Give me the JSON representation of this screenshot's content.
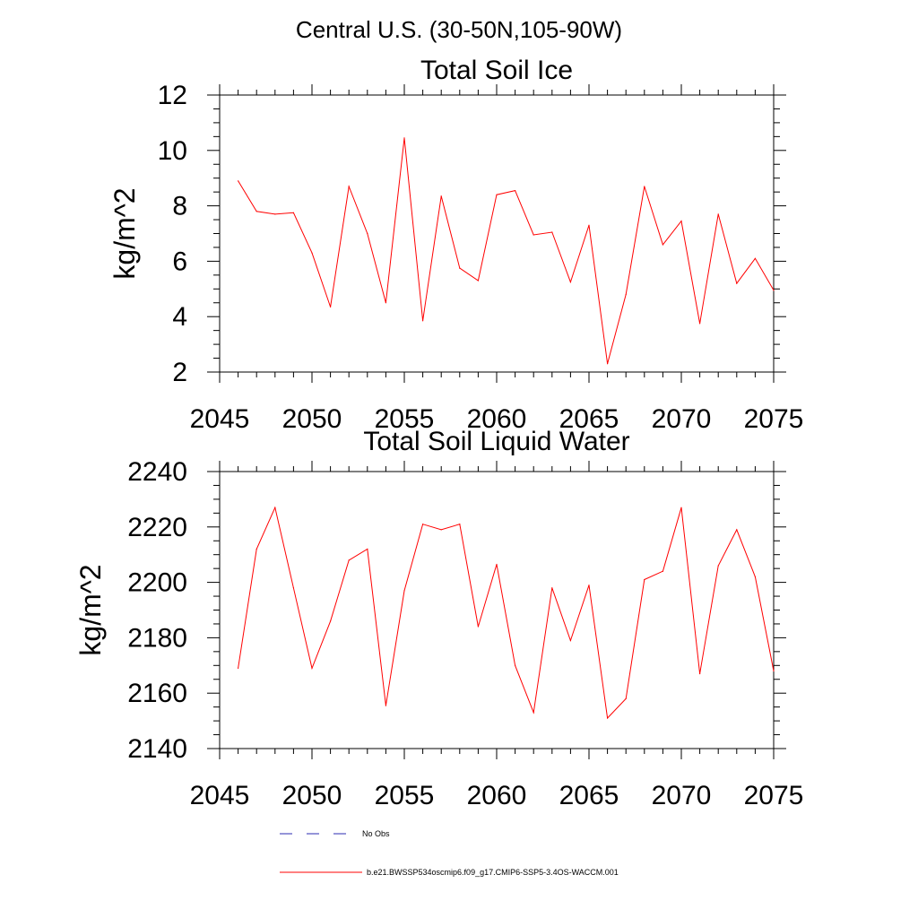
{
  "figure": {
    "super_title": "Central U.S. (30-50N,105-90W)",
    "colors": {
      "series": "#ff0000",
      "obs": "#2b2bb0",
      "axes": "#000000",
      "background": "#ffffff"
    }
  },
  "chart_data": [
    {
      "type": "line",
      "title": "Total Soil Ice",
      "xlabel": "",
      "ylabel": "kg/m^2",
      "xlim": [
        2045,
        2075
      ],
      "ylim": [
        2,
        12
      ],
      "x_ticks": [
        2045,
        2050,
        2055,
        2060,
        2065,
        2070,
        2075
      ],
      "y_ticks": [
        2,
        4,
        6,
        8,
        10,
        12
      ],
      "grid": false,
      "series": [
        {
          "name": "b.e21.BWSSP534oscmip6.f09_g17.CMIP6-SSP5-3.4OS-WACCM.001",
          "x": [
            2046,
            2047,
            2048,
            2049,
            2050,
            2051,
            2052,
            2053,
            2054,
            2055,
            2056,
            2057,
            2058,
            2059,
            2060,
            2061,
            2062,
            2063,
            2064,
            2065,
            2066,
            2067,
            2068,
            2069,
            2070,
            2071,
            2072,
            2073,
            2074,
            2075
          ],
          "values": [
            8.9,
            7.8,
            7.7,
            7.75,
            6.3,
            4.35,
            8.7,
            7.0,
            4.5,
            10.45,
            3.85,
            8.35,
            5.75,
            5.3,
            8.4,
            8.55,
            6.95,
            7.05,
            5.25,
            7.3,
            2.3,
            4.8,
            8.7,
            6.6,
            7.45,
            3.75,
            7.7,
            5.2,
            6.1,
            4.95
          ]
        }
      ]
    },
    {
      "type": "line",
      "title": "Total Soil Liquid Water",
      "xlabel": "",
      "ylabel": "kg/m^2",
      "xlim": [
        2045,
        2075
      ],
      "ylim": [
        2140,
        2240
      ],
      "x_ticks": [
        2045,
        2050,
        2055,
        2060,
        2065,
        2070,
        2075
      ],
      "y_ticks": [
        2140,
        2160,
        2180,
        2200,
        2220,
        2240
      ],
      "grid": false,
      "series": [
        {
          "name": "b.e21.BWSSP534oscmip6.f09_g17.CMIP6-SSP5-3.4OS-WACCM.001",
          "x": [
            2046,
            2047,
            2048,
            2049,
            2050,
            2051,
            2052,
            2053,
            2054,
            2055,
            2056,
            2057,
            2058,
            2059,
            2060,
            2061,
            2062,
            2063,
            2064,
            2065,
            2066,
            2067,
            2068,
            2069,
            2070,
            2071,
            2072,
            2073,
            2074,
            2075
          ],
          "values": [
            2169,
            2212,
            2227,
            2198,
            2169,
            2186,
            2208,
            2212,
            2155.5,
            2197,
            2221,
            2219,
            2221,
            2184,
            2206.5,
            2170,
            2153,
            2198,
            2179,
            2199,
            2151,
            2158,
            2201,
            2204,
            2227,
            2167,
            2206,
            2219,
            2202,
            2168
          ]
        }
      ]
    }
  ],
  "legend": {
    "items": [
      {
        "label": "No Obs",
        "style": "dashed"
      },
      {
        "label": "b.e21.BWSSP534oscmip6.f09_g17.CMIP6-SSP5-3.4OS-WACCM.001",
        "style": "solid"
      }
    ]
  }
}
